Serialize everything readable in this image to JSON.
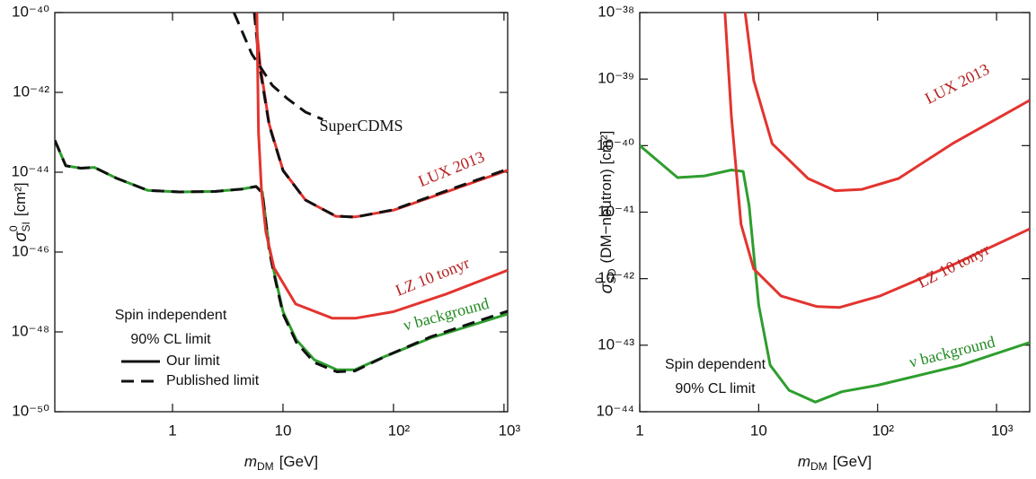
{
  "chart_data": [
    {
      "type": "line",
      "xlabel": {
        "symbol": "m",
        "subscript": "DM",
        "unit": "[GeV]"
      },
      "ylabel": {
        "symbol": "σ",
        "superscript": "0",
        "subscript": "SI",
        "unit": "[cm²]"
      },
      "xscale": "log",
      "yscale": "log",
      "xlim": [
        0.086,
        1080
      ],
      "ylim": [
        1e-50,
        1e-40
      ],
      "xticks": [
        1,
        10,
        {
          "value": 100,
          "label": "10²"
        },
        {
          "value": 1000,
          "label": "10³"
        }
      ],
      "yticks": [
        {
          "value": 1e-40,
          "label": "10⁻⁴⁰"
        },
        {
          "value": 1e-42,
          "label": "10⁻⁴²"
        },
        {
          "value": 1e-44,
          "label": "10⁻⁴⁴"
        },
        {
          "value": 1e-46,
          "label": "10⁻⁴⁶"
        },
        {
          "value": 1e-48,
          "label": "10⁻⁴⁸"
        },
        {
          "value": 1e-50,
          "label": "10⁻⁵⁰"
        }
      ],
      "legend": {
        "lines": [
          "Spin independent",
          "90% CL limit"
        ],
        "entries": [
          {
            "label": "Our limit",
            "dashed": false
          },
          {
            "label": "Published limit",
            "dashed": true
          }
        ]
      },
      "series": [
        {
          "name": "ν background",
          "color": "#2e9e2e",
          "label_color": "#218a21",
          "dashed": false,
          "x": [
            0.086,
            0.108,
            0.148,
            0.196,
            0.31,
            0.6,
            1.16,
            2.46,
            4.3,
            5.7,
            6.5,
            7.5,
            8.3,
            10,
            13.2,
            19.2,
            30.8,
            44.6,
            86,
            219,
            1080
          ],
          "values": [
            6.3e-44,
            1.45e-44,
            1.26e-44,
            1.32e-44,
            7.1e-45,
            3.5e-45,
            3.2e-45,
            3.3e-45,
            3.8e-45,
            4.4e-45,
            3.2e-45,
            1.26e-46,
            3.2e-47,
            3.2e-48,
            6.3e-49,
            2e-49,
            1.12e-49,
            1.12e-49,
            2.5e-49,
            7.1e-49,
            2.8e-48
          ]
        },
        {
          "color": "#111111",
          "dashed": true,
          "x": [
            0.086,
            0.108,
            0.148,
            0.196,
            0.31,
            0.6,
            1.16,
            2.46,
            4.3,
            5.7,
            6.5,
            7.5,
            8.3,
            10,
            13.2,
            19.2,
            30.8,
            44.6,
            86,
            219,
            1080
          ],
          "values": [
            6.3e-44,
            1.45e-44,
            1.26e-44,
            1.32e-44,
            7.1e-45,
            3.5e-45,
            3.2e-45,
            3.3e-45,
            3.8e-45,
            4.4e-45,
            3e-45,
            1.1e-46,
            2.8e-47,
            2.8e-48,
            5.5e-49,
            1.7e-49,
            1e-49,
            1.05e-49,
            2.5e-49,
            7.6e-49,
            3.3e-48
          ]
        },
        {
          "name": "LUX 2013",
          "color": "#e3342f",
          "label_color": "#b52020",
          "dashed": false,
          "x": [
            5.6,
            6.2,
            7.5,
            10,
            16,
            30,
            45,
            100,
            300,
            1080
          ],
          "values": [
            1e-40,
            5e-42,
            1.6e-43,
            1.12e-44,
            2e-45,
            7.9e-46,
            7.6e-46,
            1.12e-45,
            3.2e-45,
            1.12e-44
          ]
        },
        {
          "color": "#111111",
          "dashed": true,
          "x": [
            5.5,
            6.1,
            7.5,
            10,
            16,
            30,
            45,
            100,
            300,
            1080
          ],
          "values": [
            1e-40,
            5e-42,
            1.5e-43,
            1.1e-44,
            2e-45,
            8e-46,
            7.5e-46,
            1.15e-45,
            3.4e-45,
            1.2e-44
          ]
        },
        {
          "name": "LZ 10 tonyr",
          "color": "#e3342f",
          "label_color": "#b52020",
          "dashed": false,
          "x": [
            5.8,
            6.0,
            6.4,
            7,
            8.3,
            13,
            28,
            45,
            100,
            300,
            1080
          ],
          "values": [
            1e-40,
            1e-43,
            3.2e-45,
            3.2e-46,
            4e-47,
            5e-48,
            2.2e-48,
            2.2e-48,
            3.2e-48,
            8.9e-48,
            3.5e-47
          ]
        },
        {
          "name": "SuperCDMS",
          "color": "#111111",
          "label_color": "#111111",
          "dashed": true,
          "x": [
            3.6,
            5.2,
            8,
            11,
            16,
            23
          ],
          "values": [
            1e-40,
            9.3e-42,
            1.5e-42,
            6.9e-43,
            3.2e-43,
            2.1e-43
          ]
        }
      ]
    },
    {
      "type": "line",
      "xlabel": {
        "symbol": "m",
        "subscript": "DM",
        "unit": "[GeV]"
      },
      "ylabel": {
        "symbol": "σ",
        "superscript": "0",
        "subscript": "SD",
        "unit": "(DM−neutron) [cm²]"
      },
      "xscale": "log",
      "yscale": "log",
      "xlim": [
        1,
        1900
      ],
      "ylim": [
        1e-44,
        1e-38
      ],
      "xticks": [
        1,
        10,
        {
          "value": 100,
          "label": "10²"
        },
        {
          "value": 1000,
          "label": "10³"
        }
      ],
      "yticks": [
        {
          "value": 1e-38,
          "label": "10⁻³⁸"
        },
        {
          "value": 1e-39,
          "label": "10⁻³⁹"
        },
        {
          "value": 1e-40,
          "label": "10⁻⁴⁰"
        },
        {
          "value": 1e-41,
          "label": "10⁻⁴¹"
        },
        {
          "value": 1e-42,
          "label": "10⁻⁴²"
        },
        {
          "value": 1e-43,
          "label": "10⁻⁴³"
        },
        {
          "value": 1e-44,
          "label": "10⁻⁴⁴"
        }
      ],
      "legend": {
        "lines": [
          "Spin dependent",
          "90% CL limit"
        ],
        "entries": []
      },
      "series": [
        {
          "name": "ν background",
          "color": "#2e9e2e",
          "label_color": "#218a21",
          "dashed": false,
          "x": [
            1,
            2.08,
            3.5,
            5.9,
            7.4,
            8.3,
            10,
            12.5,
            18,
            30,
            50,
            100,
            500,
            1900
          ],
          "values": [
            1e-40,
            3.3e-41,
            3.5e-41,
            4.3e-41,
            4.1e-41,
            1.26e-41,
            4e-43,
            5e-44,
            2.1e-44,
            1.4e-44,
            2e-44,
            2.5e-44,
            5e-44,
            1.1e-43
          ]
        },
        {
          "name": "LUX 2013",
          "color": "#e3342f",
          "label_color": "#b52020",
          "dashed": false,
          "x": [
            7.7,
            9.1,
            13,
            26,
            44,
            74,
            150,
            425,
            1900
          ],
          "values": [
            1e-38,
            9.5e-40,
            1.07e-40,
            3.2e-41,
            2.1e-41,
            2.2e-41,
            3.2e-41,
            1.07e-40,
            4.8e-40
          ]
        },
        {
          "name": "LZ 10 tonyr",
          "color": "#e3342f",
          "label_color": "#b52020",
          "dashed": false,
          "x": [
            5.2,
            5.9,
            7.1,
            9.1,
            15.4,
            31,
            48,
            105,
            425,
            1900
          ],
          "values": [
            1e-38,
            2.75e-40,
            6.6e-42,
            1.4e-42,
            5.5e-43,
            3.8e-43,
            3.7e-43,
            5.5e-43,
            1.6e-42,
            5.6e-42
          ]
        }
      ]
    }
  ]
}
